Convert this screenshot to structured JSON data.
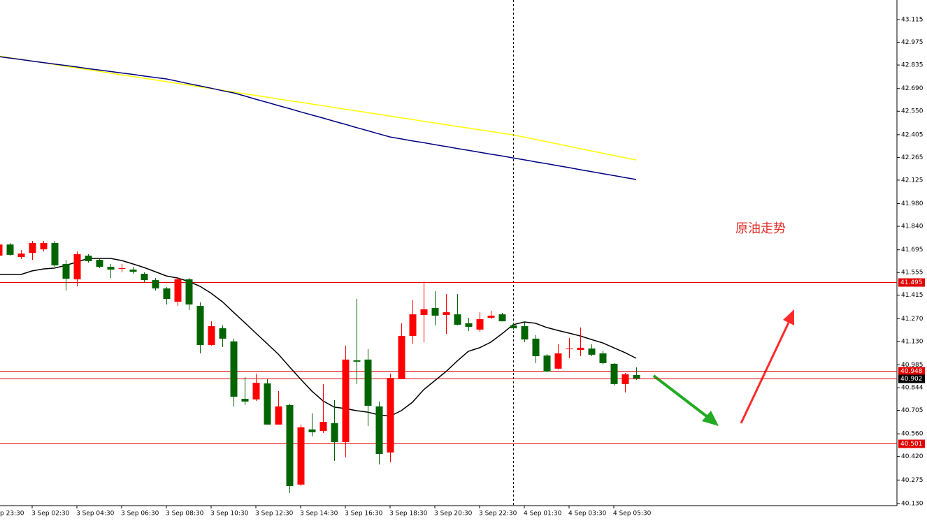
{
  "chart_data": {
    "type": "candlestick",
    "annotation": "原油走势",
    "categories": [
      "p 23:30",
      null,
      null,
      "3 Sep 02:30",
      null,
      null,
      null,
      "3 Sep 04:30",
      null,
      null,
      null,
      "3 Sep 06:30",
      null,
      null,
      null,
      "3 Sep 08:30",
      null,
      null,
      null,
      "3 Sep 10:30",
      null,
      null,
      null,
      "3 Sep 12:30",
      null,
      null,
      null,
      "3 Sep 14:30",
      null,
      null,
      null,
      "3 Sep 16:30",
      null,
      null,
      null,
      "3 Sep 18:30",
      null,
      null,
      null,
      "3 Sep 20:30",
      null,
      null,
      null,
      "3 Sep 22:30",
      null,
      null,
      null,
      "4 Sep 01:30",
      null,
      null,
      null,
      "4 Sep 03:30",
      null,
      null,
      null,
      "4 Sep 05:30",
      null,
      null
    ],
    "open": [
      41.659,
      41.728,
      41.651,
      41.676,
      41.698,
      41.737,
      41.608,
      41.513,
      41.659,
      41.633,
      41.59,
      41.582,
      41.573,
      41.547,
      41.508,
      41.457,
      41.375,
      41.513,
      41.349,
      41.108,
      41.211,
      41.13,
      40.776,
      40.772,
      40.871,
      40.617,
      40.738,
      40.247,
      40.587,
      40.578,
      40.626,
      40.509,
      41.013,
      41.018,
      40.729,
      40.445,
      40.897,
      41.164,
      41.293,
      41.336,
      41.293,
      41.297,
      41.242,
      41.203,
      41.276,
      41.297,
      41.229,
      41.224,
      41.147,
      41.043,
      40.962,
      41.086,
      41.078,
      41.086,
      41.056,
      40.992,
      40.867,
      40.923
    ],
    "high": [
      41.728,
      41.737,
      41.694,
      41.75,
      41.75,
      41.75,
      41.633,
      41.685,
      41.668,
      41.642,
      41.608,
      41.608,
      41.59,
      41.556,
      41.521,
      41.465,
      41.526,
      41.521,
      41.371,
      41.254,
      41.229,
      41.147,
      40.91,
      40.931,
      40.897,
      40.824,
      40.746,
      40.617,
      40.686,
      40.867,
      40.768,
      41.104,
      41.392,
      41.082,
      40.759,
      40.931,
      41.242,
      41.384,
      41.5,
      41.44,
      41.422,
      41.422,
      41.276,
      41.31,
      41.319,
      41.306,
      41.246,
      41.246,
      41.168,
      41.052,
      41.112,
      41.151,
      41.216,
      41.112,
      41.074,
      40.996,
      40.936,
      40.97
    ],
    "low": [
      41.642,
      41.659,
      41.638,
      41.633,
      41.685,
      41.59,
      41.444,
      41.47,
      41.616,
      41.582,
      41.521,
      41.556,
      41.547,
      41.496,
      41.444,
      41.358,
      41.349,
      41.323,
      41.056,
      41.104,
      41.095,
      40.729,
      40.738,
      40.763,
      40.617,
      40.617,
      40.195,
      40.238,
      40.544,
      40.565,
      40.393,
      40.415,
      40.867,
      40.608,
      40.371,
      40.384,
      40.897,
      41.117,
      41.125,
      41.229,
      41.177,
      41.229,
      41.194,
      41.19,
      41.267,
      41.254,
      41.203,
      41.125,
      40.996,
      40.94,
      40.957,
      41.026,
      41.039,
      41.039,
      40.987,
      40.858,
      40.815,
      40.893
    ],
    "close": [
      41.728,
      41.664,
      41.672,
      41.737,
      41.737,
      41.599,
      41.517,
      41.668,
      41.625,
      41.59,
      41.573,
      41.582,
      41.56,
      41.508,
      41.457,
      41.392,
      41.513,
      41.358,
      41.108,
      41.224,
      41.147,
      40.789,
      40.759,
      40.875,
      40.617,
      40.729,
      40.238,
      40.6,
      40.57,
      40.634,
      40.509,
      41.018,
      41.005,
      40.733,
      40.436,
      40.905,
      41.164,
      41.297,
      41.328,
      41.289,
      41.31,
      41.233,
      41.22,
      41.267,
      41.289,
      41.254,
      41.211,
      41.142,
      41.039,
      40.944,
      41.056,
      41.086,
      41.091,
      41.048,
      40.996,
      40.867,
      40.927,
      40.902
    ],
    "up_color": "#ff0000",
    "down_color": "#006400",
    "lines": [
      {
        "color": "#ffff00",
        "values": [
          42.891,
          42.88,
          42.87,
          42.859,
          42.849,
          42.838,
          42.827,
          42.817,
          42.806,
          42.796,
          42.785,
          42.774,
          42.764,
          42.753,
          42.743,
          42.732,
          42.721,
          42.711,
          42.7,
          42.69,
          42.679,
          42.668,
          42.658,
          42.647,
          42.637,
          42.626,
          42.615,
          42.605,
          42.594,
          42.584,
          42.573,
          42.562,
          42.552,
          42.541,
          42.531,
          42.52,
          42.509,
          42.499,
          42.488,
          42.478,
          42.467,
          42.456,
          42.446,
          42.435,
          42.425,
          42.414,
          42.404,
          42.39,
          42.376,
          42.362,
          42.348,
          42.333,
          42.319,
          42.305,
          42.291,
          42.277,
          42.263,
          42.249
        ]
      },
      {
        "color": "#000080",
        "values": [
          42.887,
          42.878,
          42.869,
          42.859,
          42.85,
          42.841,
          42.832,
          42.823,
          42.813,
          42.804,
          42.795,
          42.786,
          42.777,
          42.767,
          42.758,
          42.749,
          42.735,
          42.72,
          42.706,
          42.692,
          42.677,
          42.663,
          42.644,
          42.624,
          42.605,
          42.585,
          42.566,
          42.546,
          42.527,
          42.508,
          42.488,
          42.469,
          42.449,
          42.43,
          42.41,
          42.391,
          42.379,
          42.367,
          42.356,
          42.344,
          42.332,
          42.32,
          42.309,
          42.297,
          42.285,
          42.274,
          42.262,
          42.25,
          42.238,
          42.226,
          42.214,
          42.202,
          42.189,
          42.177,
          42.165,
          42.153,
          42.141,
          42.129
        ]
      },
      {
        "color": "#000000",
        "values": [
          41.543,
          41.543,
          41.543,
          41.565,
          41.577,
          41.582,
          41.599,
          41.62,
          41.642,
          41.642,
          41.642,
          41.629,
          41.608,
          41.586,
          41.56,
          41.534,
          41.521,
          41.5,
          41.47,
          41.427,
          41.375,
          41.31,
          41.246,
          41.181,
          41.117,
          41.052,
          40.974,
          40.897,
          40.824,
          40.763,
          40.725,
          40.716,
          40.703,
          40.694,
          40.677,
          40.669,
          40.703,
          40.755,
          40.832,
          40.888,
          40.944,
          41.009,
          41.069,
          41.091,
          41.125,
          41.177,
          41.233,
          41.25,
          41.242,
          41.216,
          41.198,
          41.181,
          41.164,
          41.142,
          41.121,
          41.091,
          41.061,
          41.026
        ]
      }
    ],
    "levels": [
      41.495,
      40.948,
      40.501
    ],
    "level_color": "#e00000",
    "current_price": 40.902,
    "ylim": [
      40.117,
      43.236
    ],
    "yticks": [
      43.115,
      42.975,
      42.835,
      {
        "value": 42.69,
        "label": "42.690"
      },
      {
        "value": 42.55,
        "label": "42.550"
      },
      42.405,
      42.265,
      42.125,
      {
        "value": 41.98,
        "label": "41.980"
      },
      {
        "value": 41.84,
        "label": "41.840"
      },
      41.695,
      41.555,
      41.415,
      {
        "value": 41.27,
        "label": "41.270"
      },
      {
        "value": 41.13,
        "label": "41.130"
      },
      40.985,
      40.844,
      40.705,
      {
        "value": 40.56,
        "label": "40.560"
      },
      {
        "value": 40.42,
        "label": "40.420"
      },
      40.275,
      {
        "value": 40.13,
        "label": "40.130"
      }
    ]
  }
}
